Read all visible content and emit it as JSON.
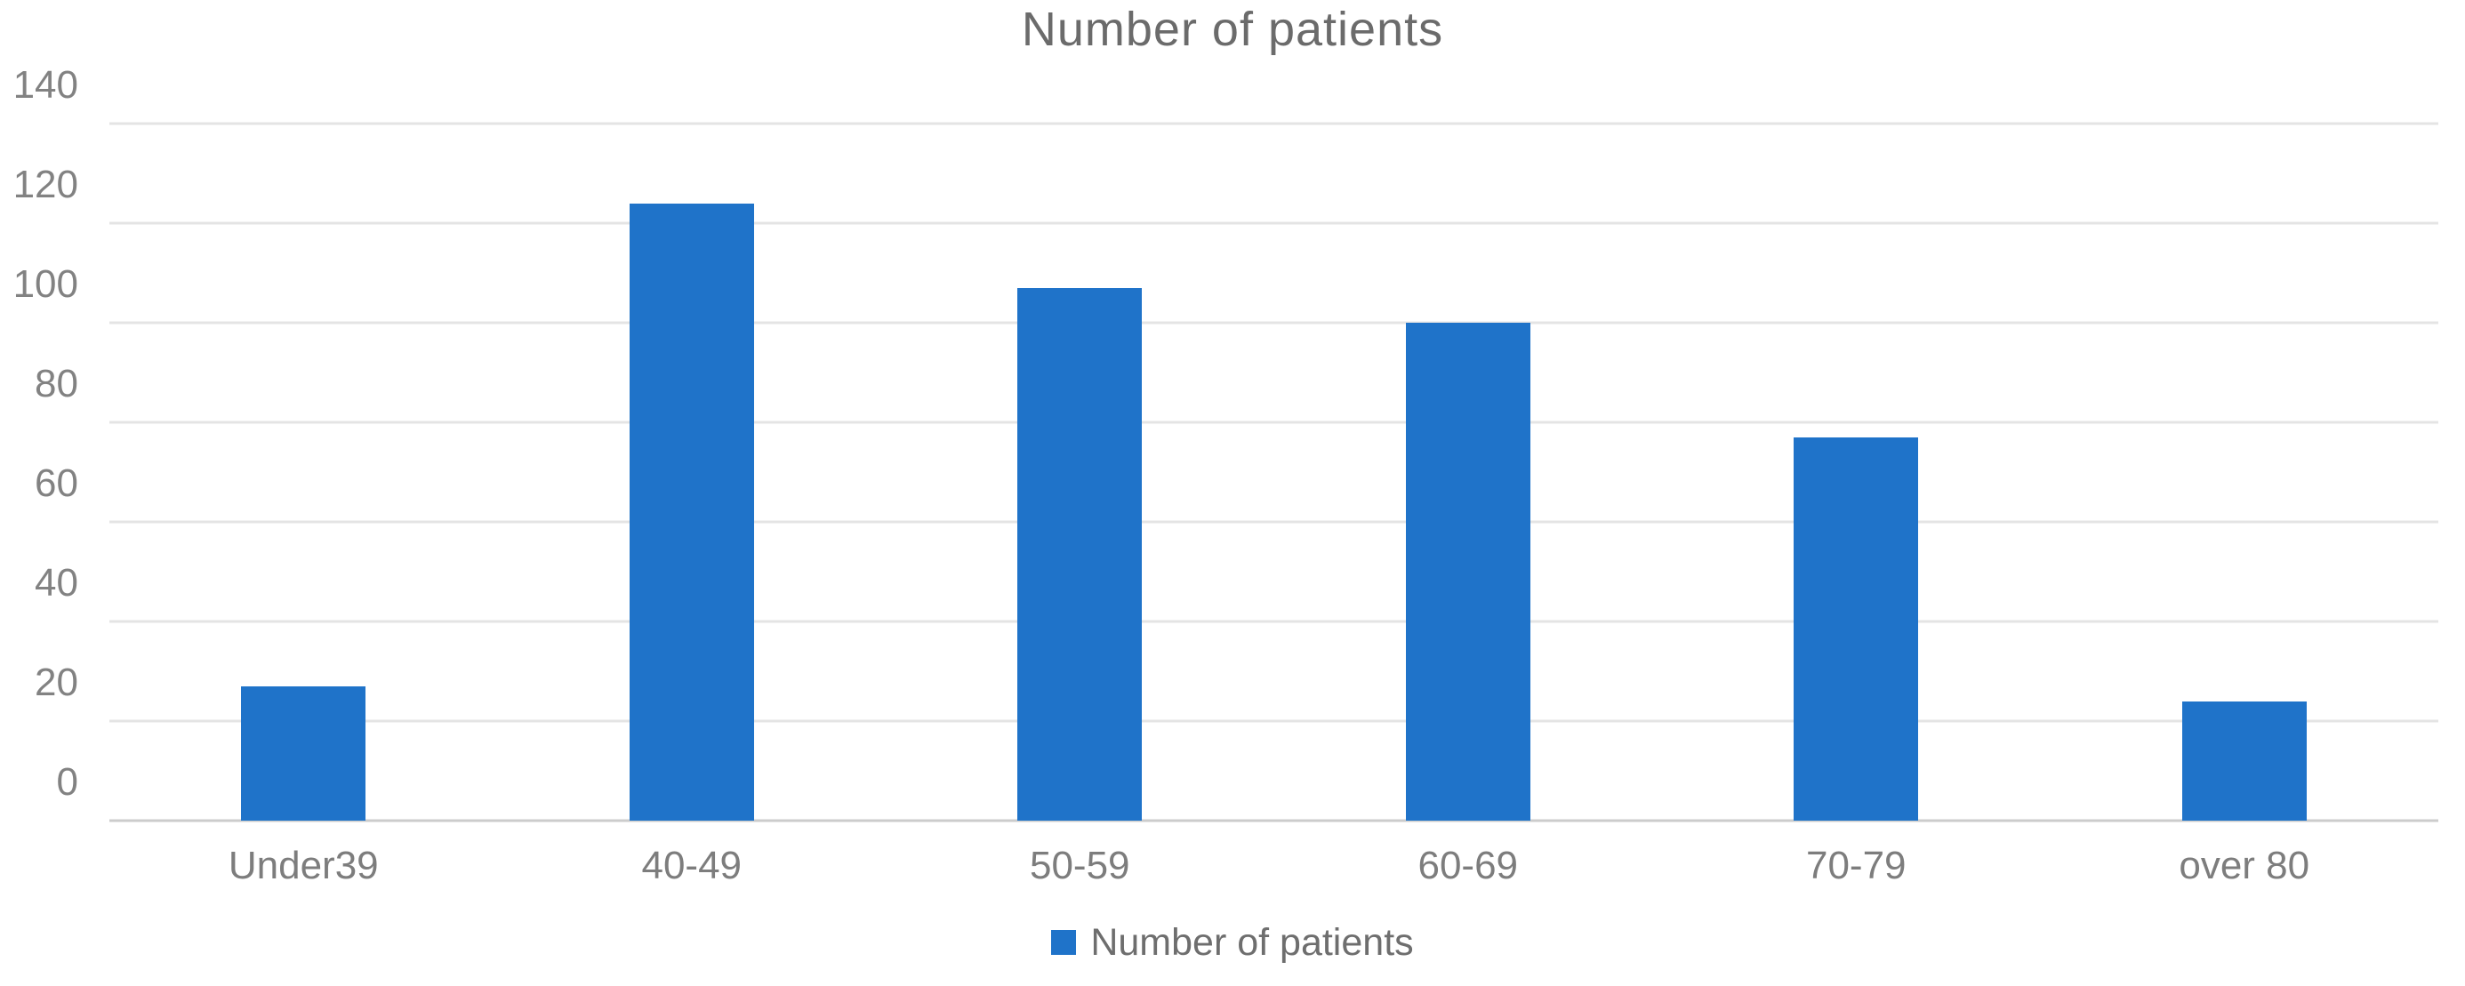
{
  "chart_data": {
    "type": "bar",
    "title": "Number of patients",
    "categories": [
      "Under39",
      "40-49",
      "50-59",
      "60-69",
      "70-79",
      "over 80"
    ],
    "values": [
      27,
      124,
      107,
      100,
      77,
      24
    ],
    "series_name": "Number of patients",
    "legend": [
      "Number of patients"
    ],
    "legend_position": "bottom",
    "xlabel": "",
    "ylabel": "",
    "ylim": [
      0,
      140
    ],
    "yticks": [
      0,
      20,
      40,
      60,
      80,
      100,
      120,
      140
    ],
    "grid": true,
    "colors": {
      "bar": "#1f73c9",
      "gridline": "#e4e4e4",
      "axis_line": "#cccccc",
      "title_text": "#6b6b6b",
      "tick_text": "#828282"
    }
  }
}
